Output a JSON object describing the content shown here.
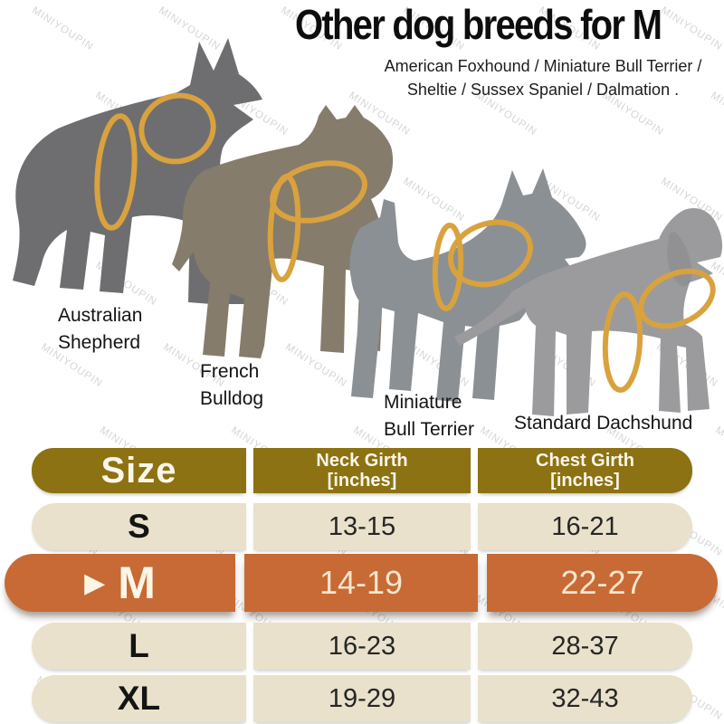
{
  "title": "Other dog breeds for M",
  "subtitle": {
    "line1": "American Foxhound / Miniature Bull Terrier /",
    "line2": "Sheltie / Sussex Spaniel / Dalmation ."
  },
  "watermark_text": "MINIYOUPIN",
  "measure_ring_color": "#d9a23e",
  "dogs": [
    {
      "name": "Australian Shepherd",
      "label_line1": "Australian",
      "label_line2": "Shepherd",
      "silhouette_color": "#6e6e70"
    },
    {
      "name": "French Bulldog",
      "label_line1": "French",
      "label_line2": "Bulldog",
      "silhouette_color": "#857c6c"
    },
    {
      "name": "Miniature Bull Terrier",
      "label_line1": "Miniature",
      "label_line2": "Bull Terrier",
      "silhouette_color": "#8b9095"
    },
    {
      "name": "Standard Dachshund",
      "label_line1": "Standard Dachshund",
      "label_line2": "",
      "silhouette_color": "#9b9b9d",
      "ear_color": "#919193"
    }
  ],
  "size_chart": {
    "header": {
      "size": "Size",
      "neck_line1": "Neck Girth",
      "neck_line2": "[inches]",
      "chest_line1": "Chest Girth",
      "chest_line2": "[inches]"
    },
    "rows": [
      {
        "size": "S",
        "neck": "13-15",
        "chest": "16-21",
        "highlighted": false
      },
      {
        "size": "M",
        "neck": "14-19",
        "chest": "22-27",
        "highlighted": true,
        "marker": "▶"
      },
      {
        "size": "L",
        "neck": "16-23",
        "chest": "28-37",
        "highlighted": false
      },
      {
        "size": "XL",
        "neck": "19-29",
        "chest": "32-43",
        "highlighted": false
      }
    ],
    "colors": {
      "header_bg": "#8c7212",
      "row_bg": "#e9e1cb",
      "highlight_bg": "#c76a35"
    }
  },
  "chart_data": {
    "type": "table",
    "title": "Other dog breeds for M",
    "columns": [
      "Size",
      "Neck Girth [inches]",
      "Chest Girth [inches]"
    ],
    "rows": [
      [
        "S",
        "13-15",
        "16-21"
      ],
      [
        "M",
        "14-19",
        "22-27"
      ],
      [
        "L",
        "16-23",
        "28-37"
      ],
      [
        "XL",
        "19-29",
        "32-43"
      ]
    ],
    "highlighted_row": "M"
  }
}
